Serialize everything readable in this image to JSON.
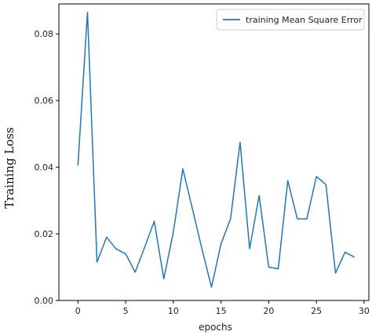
{
  "chart_data": {
    "type": "line",
    "title": "",
    "xlabel": "epochs",
    "ylabel": "Training Loss",
    "xlim": [
      -2,
      30.5
    ],
    "ylim": [
      0,
      0.089
    ],
    "xticks": [
      "0",
      "5",
      "10",
      "15",
      "20",
      "25",
      "30"
    ],
    "yticks": [
      "0.00",
      "0.02",
      "0.04",
      "0.06",
      "0.08"
    ],
    "grid": false,
    "legend_position": "top-right",
    "series": [
      {
        "name": "training Mean Square Error",
        "color": "#1f77b4",
        "x": [
          0,
          1,
          2,
          3,
          4,
          5,
          6,
          7,
          8,
          9,
          10,
          11,
          12,
          13,
          14,
          15,
          16,
          17,
          18,
          19,
          20,
          21,
          22,
          23,
          24,
          25,
          26,
          27,
          28,
          29
        ],
        "values": [
          0.0405,
          0.0865,
          0.0115,
          0.019,
          0.0155,
          0.014,
          0.0085,
          0.016,
          0.0238,
          0.0065,
          0.0205,
          0.0395,
          0.0275,
          0.0155,
          0.004,
          0.017,
          0.0245,
          0.0475,
          0.0155,
          0.0315,
          0.01,
          0.0095,
          0.036,
          0.0245,
          0.0245,
          0.0372,
          0.0348,
          0.0082,
          0.0145,
          0.013
        ]
      }
    ]
  }
}
